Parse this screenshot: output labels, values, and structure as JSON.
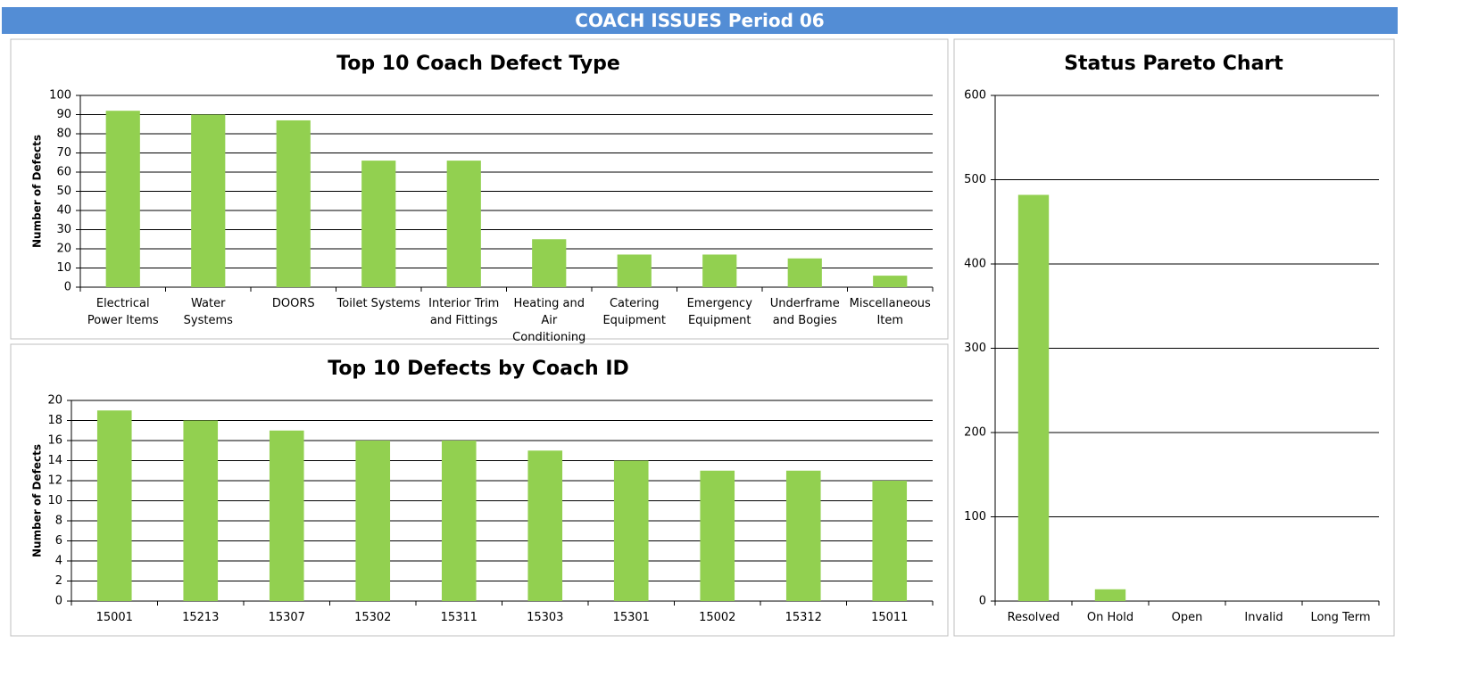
{
  "header": {
    "title": "COACH ISSUES Period 06"
  },
  "chart_data": [
    {
      "type": "bar",
      "title": "Top 10 Coach Defect Type",
      "y_label": "Number of Defects",
      "categories": [
        "Electrical Power Items",
        "Water Systems",
        "DOORS",
        "Toilet Systems",
        "Interior Trim and Fittings",
        "Heating and Air Conditioning",
        "Catering Equipment",
        "Emergency Equipment",
        "Underframe and Bogies",
        "Miscellaneous Item"
      ],
      "values": [
        92,
        90,
        87,
        66,
        66,
        25,
        17,
        17,
        15,
        6
      ],
      "color": "#92d050",
      "ylim": [
        0,
        100
      ],
      "yticks": [
        0,
        10,
        20,
        30,
        40,
        50,
        60,
        70,
        80,
        90,
        100
      ],
      "grid": true
    },
    {
      "type": "bar",
      "title": "Top 10 Defects by Coach ID",
      "y_label": "Number of Defects",
      "categories": [
        "15001",
        "15213",
        "15307",
        "15302",
        "15311",
        "15303",
        "15301",
        "15002",
        "15312",
        "15011"
      ],
      "values": [
        19,
        18,
        17,
        16,
        16,
        15,
        14,
        13,
        13,
        12
      ],
      "color": "#92d050",
      "ylim": [
        0,
        20
      ],
      "yticks": [
        0,
        2,
        4,
        6,
        8,
        10,
        12,
        14,
        16,
        18,
        20
      ],
      "grid": true
    },
    {
      "type": "bar",
      "title": "Status Pareto Chart",
      "categories": [
        "Resolved",
        "On Hold",
        "Open",
        "Invalid",
        "Long Term"
      ],
      "values": [
        482,
        14,
        0,
        0,
        0
      ],
      "color": "#92d050",
      "ylim": [
        0,
        600
      ],
      "yticks": [
        0,
        100,
        200,
        300,
        400,
        500,
        600
      ],
      "grid": true
    }
  ]
}
